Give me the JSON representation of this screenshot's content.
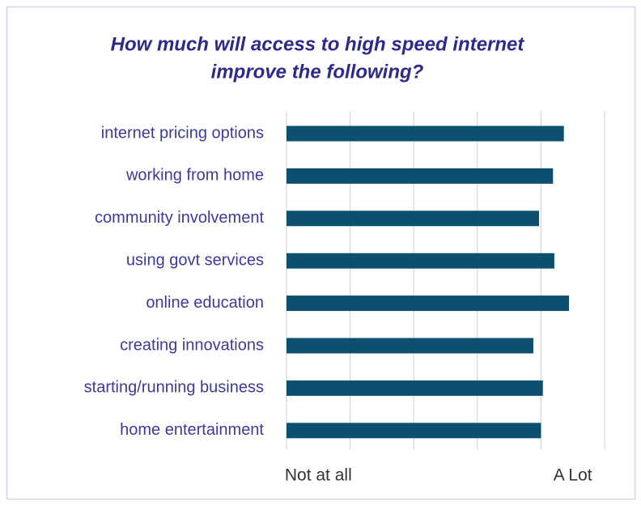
{
  "chart_data": {
    "type": "bar",
    "orientation": "horizontal",
    "title": [
      "How much will access to high speed internet",
      "improve the following?"
    ],
    "categories": [
      "internet pricing options",
      "working from home",
      "community involvement",
      "using govt services",
      "online education",
      "creating innovations",
      "starting/running business",
      "home entertainment"
    ],
    "values": [
      4.36,
      4.19,
      3.97,
      4.21,
      4.44,
      3.88,
      4.03,
      4.0
    ],
    "color": "#0d4f6e",
    "xlim": [
      0,
      5
    ],
    "xticks": [
      {
        "value": 0.5,
        "label": "Not at all"
      },
      {
        "value": 4.5,
        "label": "A Lot"
      }
    ],
    "grid": true,
    "grid_lines": [
      0,
      1,
      2,
      3,
      4,
      5
    ]
  }
}
